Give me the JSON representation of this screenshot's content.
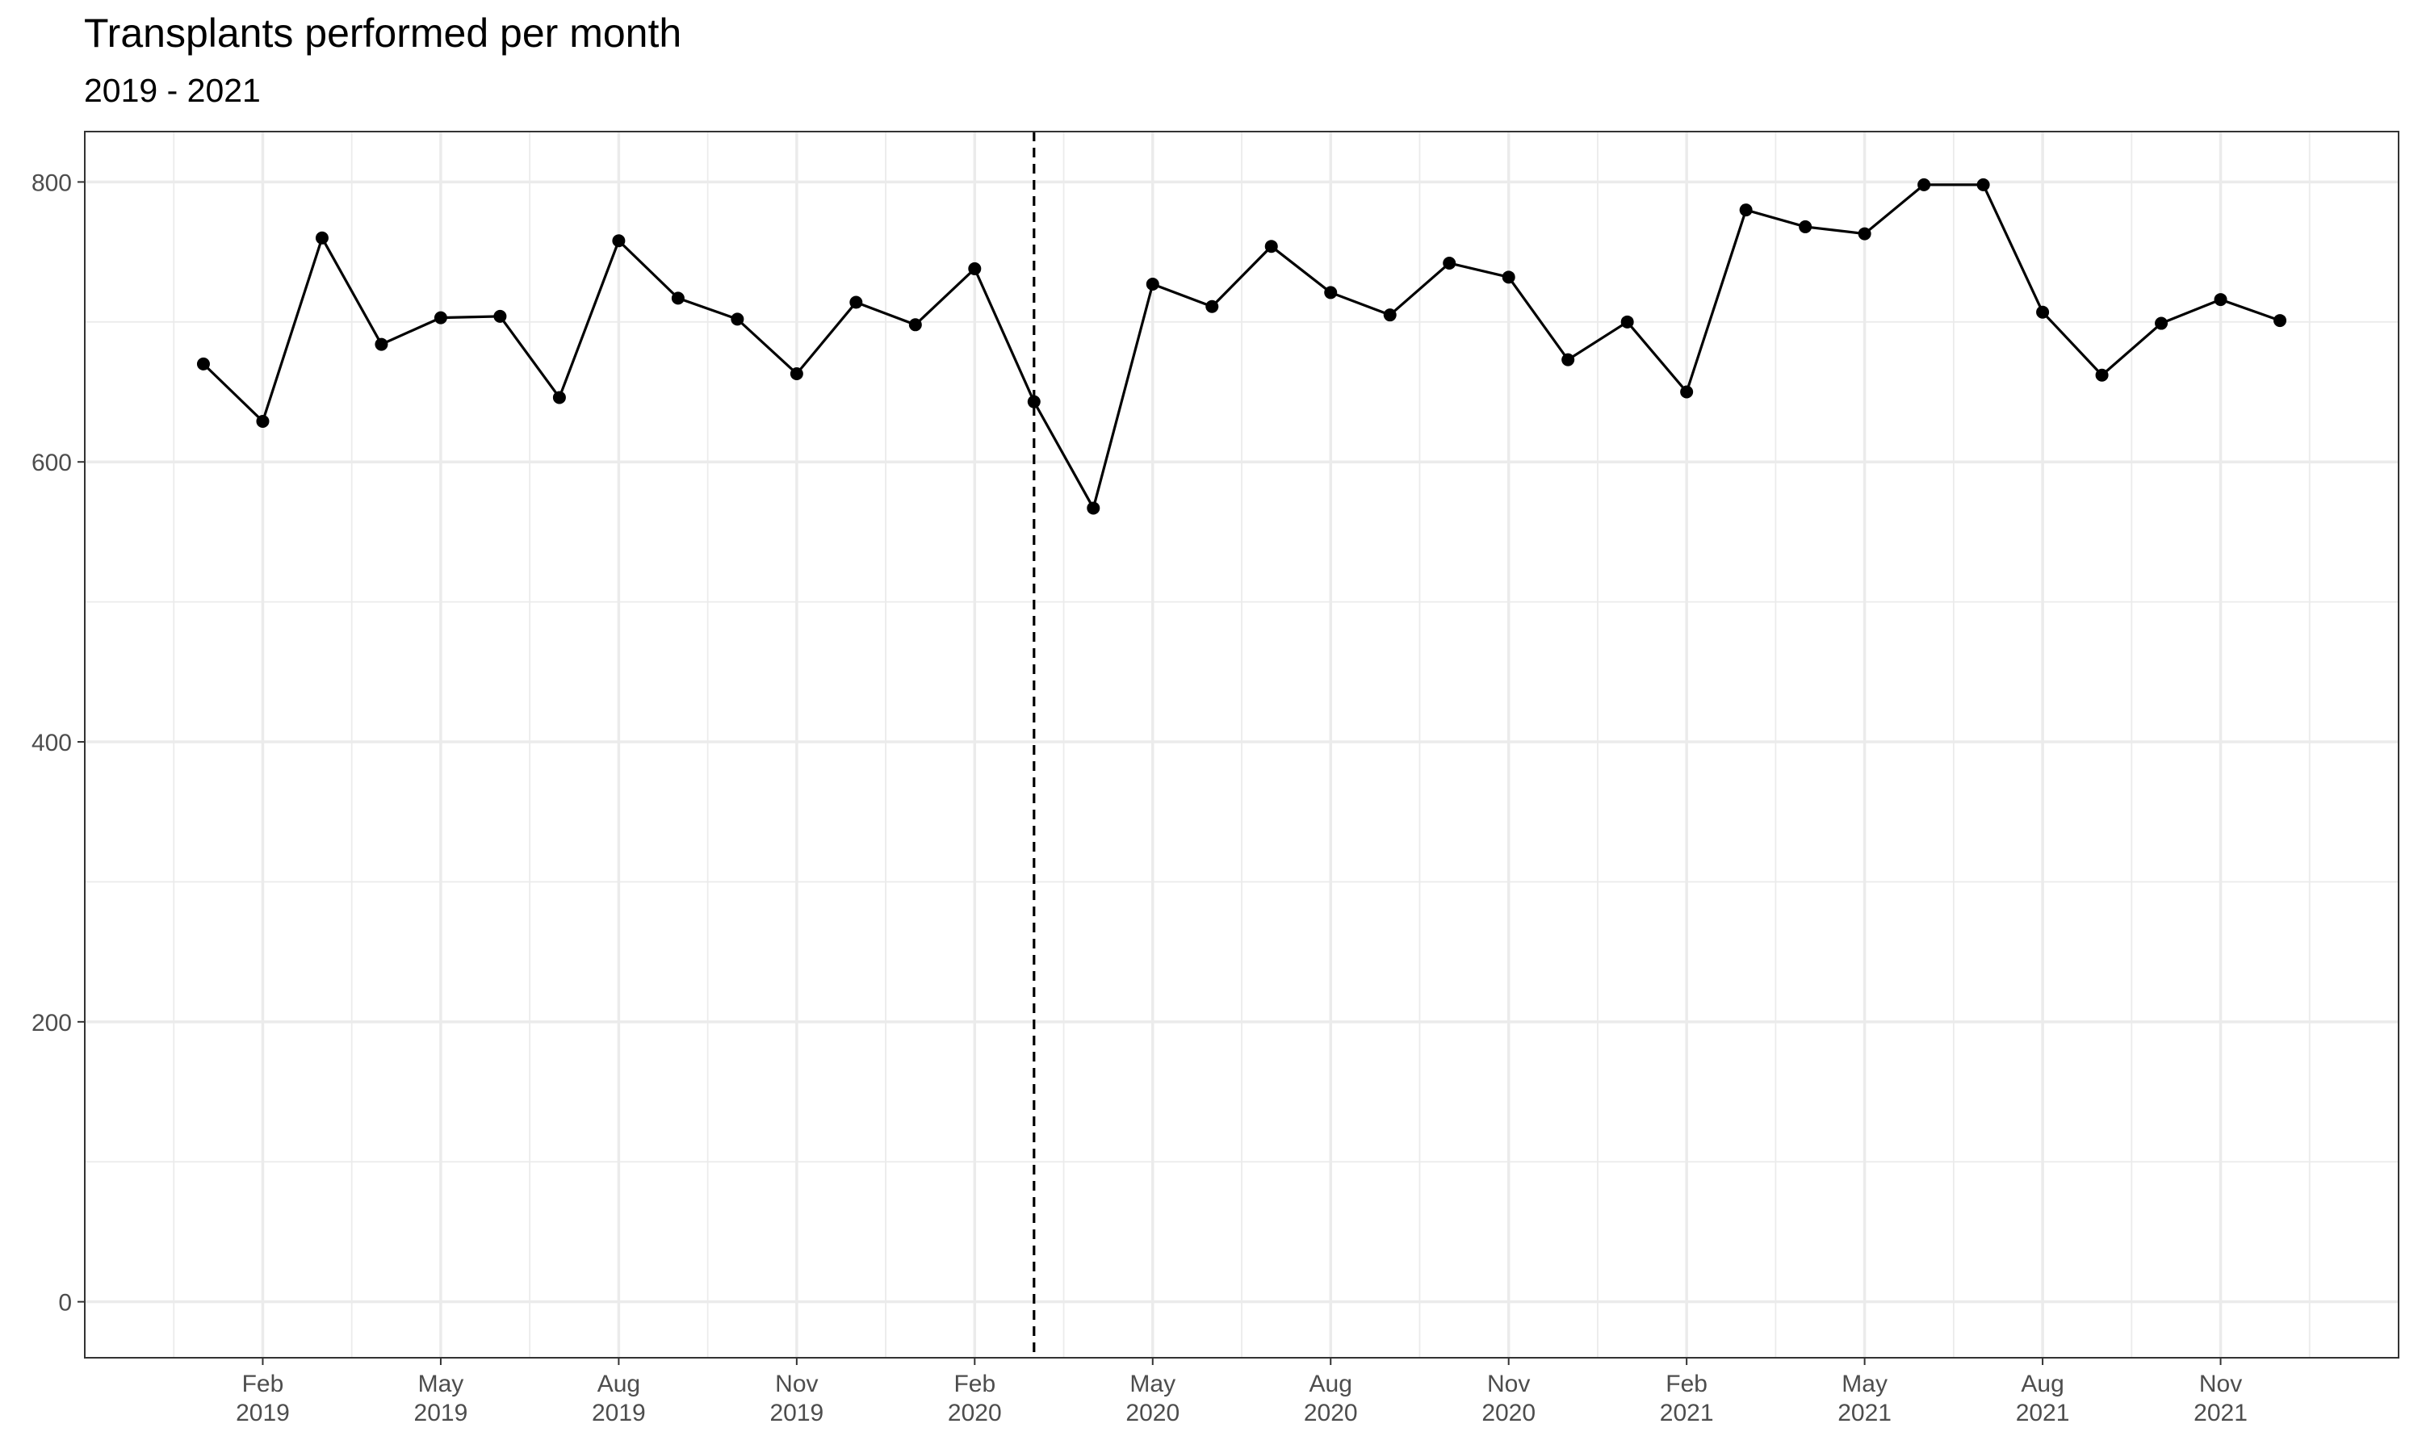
{
  "chart_data": {
    "type": "line",
    "title": "Transplants performed per month",
    "subtitle": "2019 - 2021",
    "x": [
      "2019-01",
      "2019-02",
      "2019-03",
      "2019-04",
      "2019-05",
      "2019-06",
      "2019-07",
      "2019-08",
      "2019-09",
      "2019-10",
      "2019-11",
      "2019-12",
      "2020-01",
      "2020-02",
      "2020-03",
      "2020-04",
      "2020-05",
      "2020-06",
      "2020-07",
      "2020-08",
      "2020-09",
      "2020-10",
      "2020-11",
      "2020-12",
      "2021-01",
      "2021-02",
      "2021-03",
      "2021-04",
      "2021-05",
      "2021-06",
      "2021-07",
      "2021-08",
      "2021-09",
      "2021-10",
      "2021-11",
      "2021-12"
    ],
    "values": [
      670,
      629,
      760,
      684,
      703,
      704,
      646,
      758,
      717,
      702,
      663,
      714,
      698,
      738,
      643,
      567,
      727,
      711,
      754,
      721,
      705,
      742,
      732,
      673,
      700,
      650,
      780,
      768,
      763,
      798,
      798,
      707,
      662,
      699,
      716,
      701
    ],
    "color": "#000000",
    "vline": "2020-03",
    "xlim": [
      "2018-11",
      "2022-02"
    ],
    "xticks": [
      {
        "value": "2019-02",
        "label": "Feb\n2019"
      },
      {
        "value": "2019-05",
        "label": "May\n2019"
      },
      {
        "value": "2019-08",
        "label": "Aug\n2019"
      },
      {
        "value": "2019-11",
        "label": "Nov\n2019"
      },
      {
        "value": "2020-02",
        "label": "Feb\n2020"
      },
      {
        "value": "2020-05",
        "label": "May\n2020"
      },
      {
        "value": "2020-08",
        "label": "Aug\n2020"
      },
      {
        "value": "2020-11",
        "label": "Nov\n2020"
      },
      {
        "value": "2021-02",
        "label": "Feb\n2021"
      },
      {
        "value": "2021-05",
        "label": "May\n2021"
      },
      {
        "value": "2021-08",
        "label": "Aug\n2021"
      },
      {
        "value": "2021-11",
        "label": "Nov\n2021"
      }
    ],
    "ylim": [
      -40,
      836
    ],
    "yticks": [
      0,
      200,
      400,
      600,
      800
    ],
    "grid": true
  }
}
